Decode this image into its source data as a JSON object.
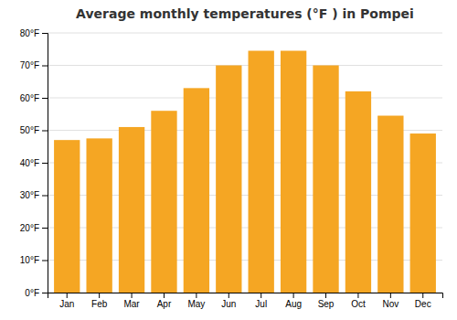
{
  "chart_data": {
    "type": "bar",
    "title": "Average monthly temperatures (°F ) in Pompei",
    "categories": [
      "Jan",
      "Feb",
      "Mar",
      "Apr",
      "May",
      "Jun",
      "Jul",
      "Aug",
      "Sep",
      "Oct",
      "Nov",
      "Dec"
    ],
    "values": [
      47,
      47.5,
      51,
      56,
      63,
      70,
      74.5,
      74.5,
      70,
      62,
      54.5,
      49
    ],
    "color": "#F5A623",
    "ylim": [
      0,
      80
    ],
    "yticks": [
      {
        "value": 0,
        "label": "0°F"
      },
      {
        "value": 10,
        "label": "10°F"
      },
      {
        "value": 20,
        "label": "20°F"
      },
      {
        "value": 30,
        "label": "30°F"
      },
      {
        "value": 40,
        "label": "40°F"
      },
      {
        "value": 50,
        "label": "50°F"
      },
      {
        "value": 60,
        "label": "60°F"
      },
      {
        "value": 70,
        "label": "70°F"
      },
      {
        "value": 80,
        "label": "80°F"
      }
    ],
    "grid": true
  }
}
